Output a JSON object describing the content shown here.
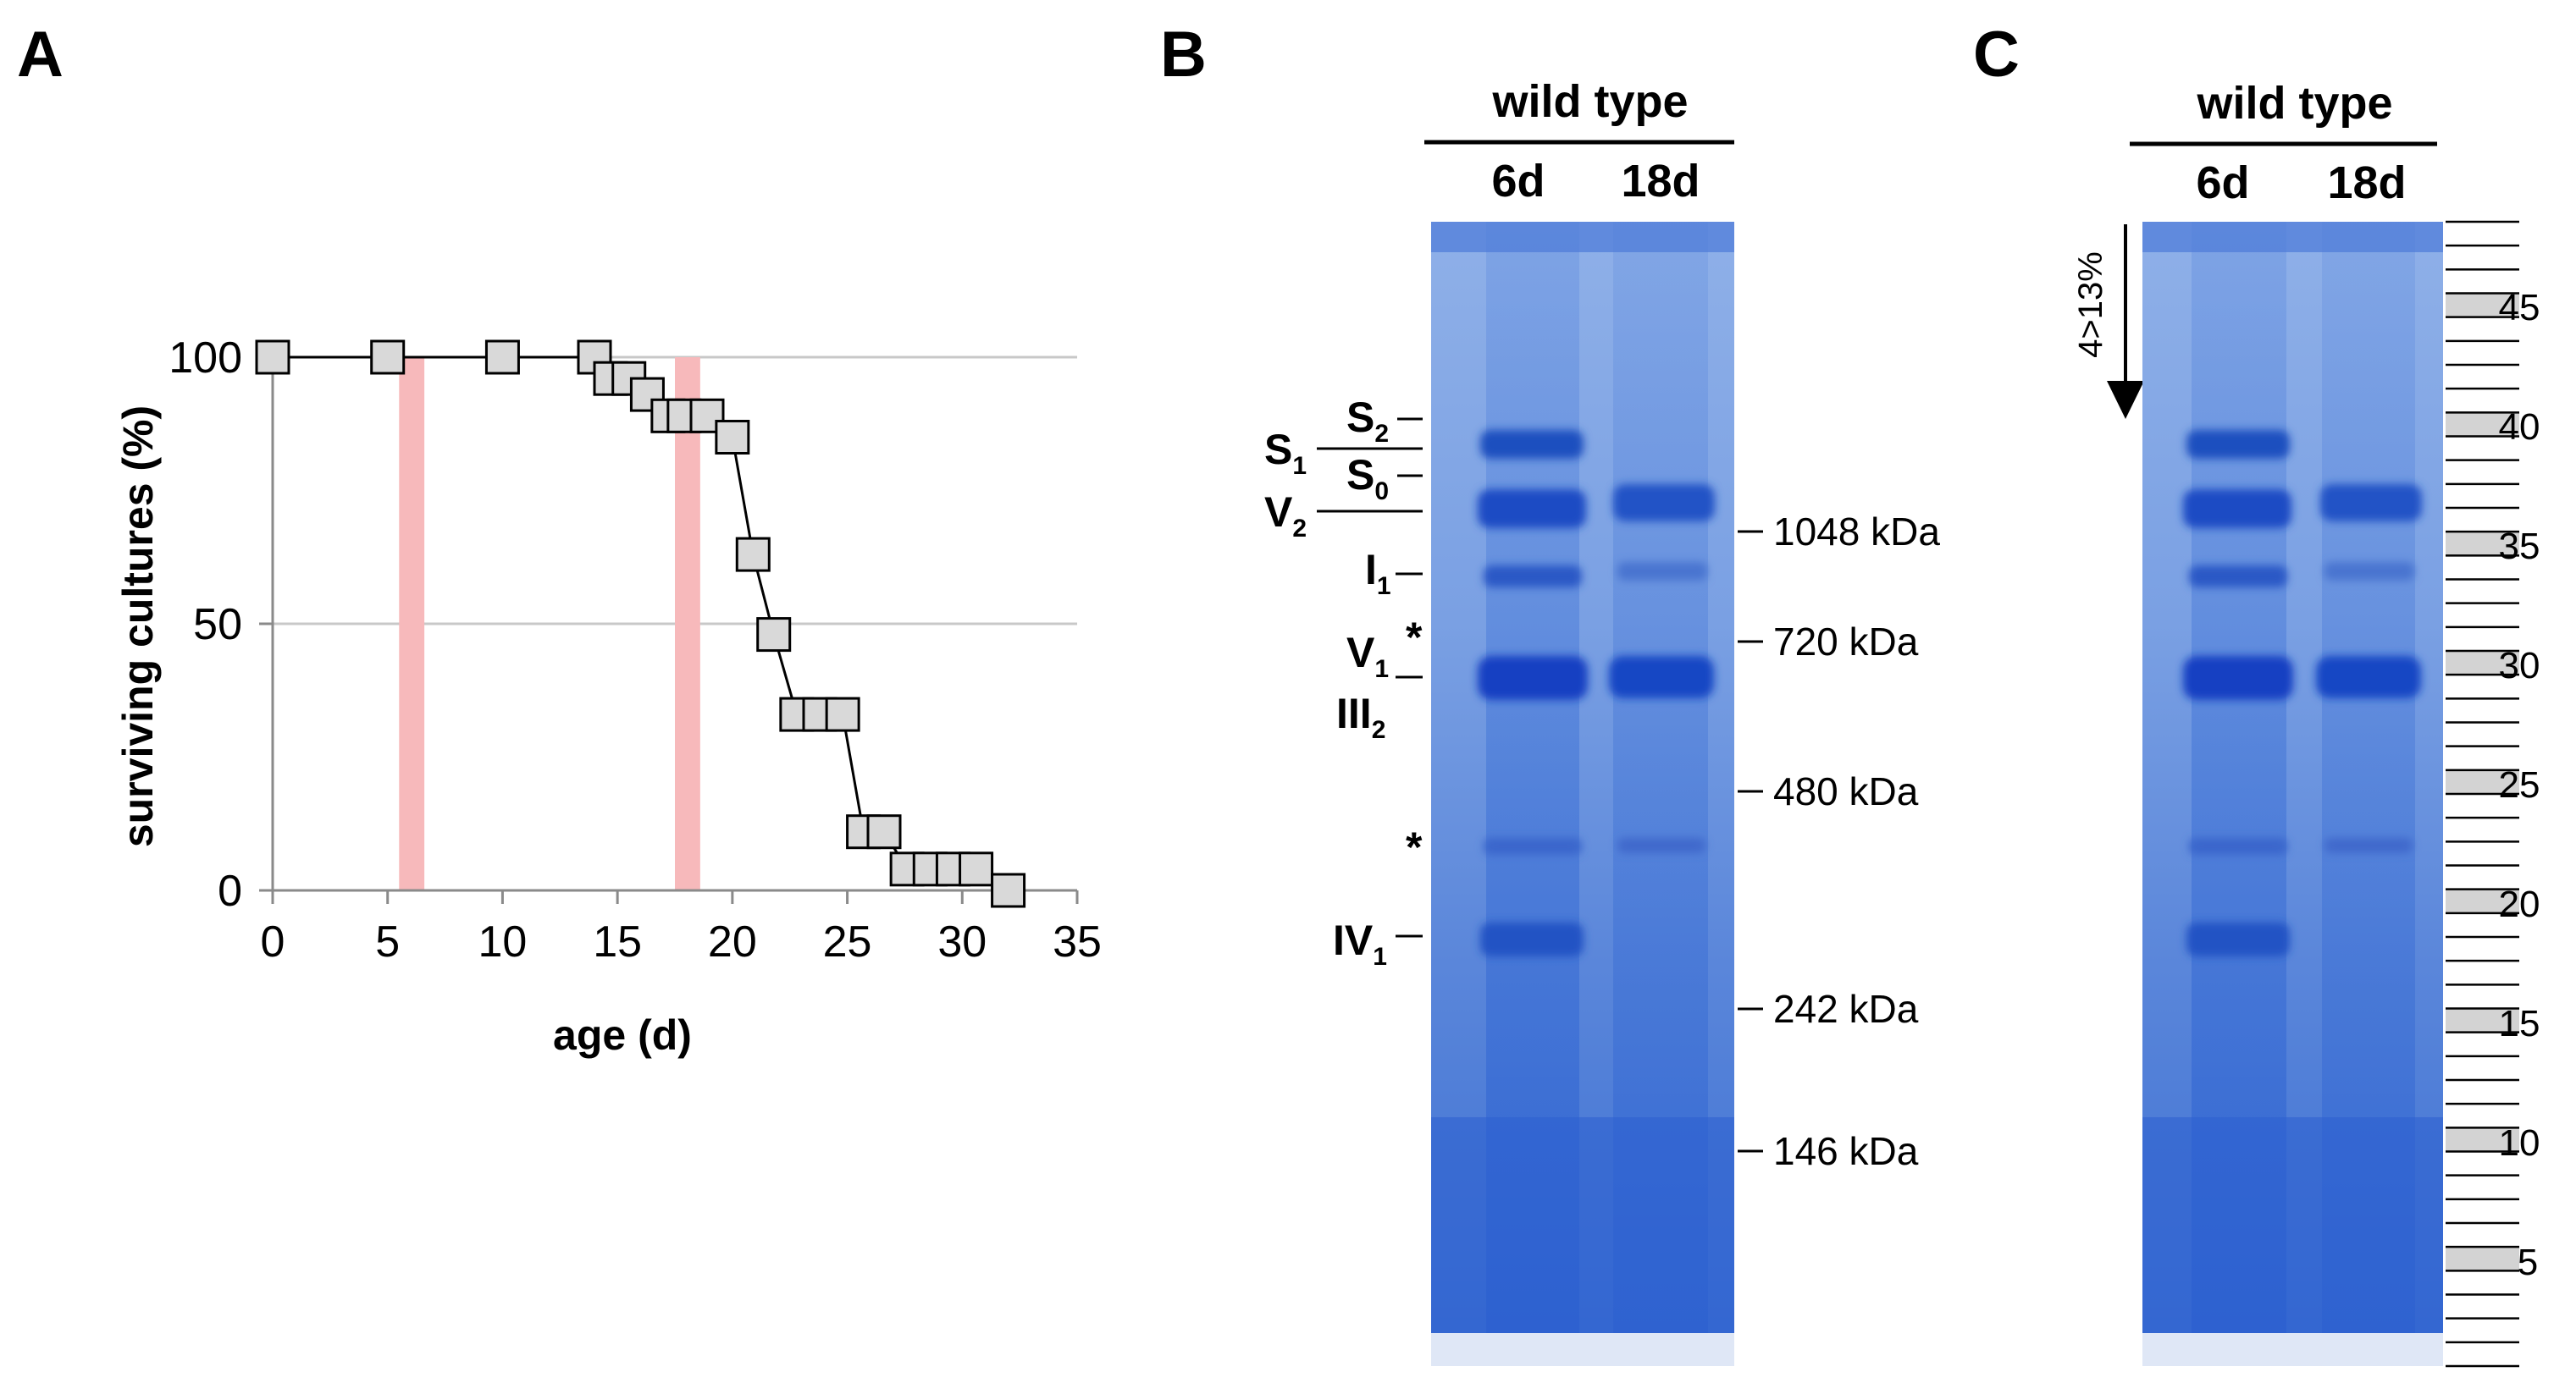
{
  "panels": {
    "a": "A",
    "b": "B",
    "c": "C"
  },
  "chart_data": {
    "type": "line",
    "xlabel": "age (d)",
    "ylabel": "surviving cultures (%)",
    "xlim": [
      0,
      35
    ],
    "ylim": [
      0,
      100
    ],
    "xticks": [
      0,
      5,
      10,
      15,
      20,
      25,
      30,
      35
    ],
    "yticks": [
      0,
      50,
      100
    ],
    "grid": "horizontal",
    "x": [
      0,
      5,
      10,
      14,
      14.7,
      15.5,
      16.3,
      17.2,
      17.9,
      18.9,
      20,
      20.9,
      21.8,
      22.8,
      23.8,
      24.8,
      25.7,
      26.6,
      27.6,
      28.6,
      29.6,
      30.6,
      32
    ],
    "y": [
      100,
      100,
      100,
      100,
      96,
      96,
      93,
      89,
      89,
      89,
      85,
      63,
      48,
      33,
      33,
      33,
      11,
      11,
      4,
      4,
      4,
      4,
      0
    ],
    "highlight_bands": [
      {
        "from": 5.5,
        "to": 6.6,
        "color": "#f7b9bb"
      },
      {
        "from": 17.5,
        "to": 18.6,
        "color": "#f7b9bb"
      }
    ],
    "marker_color": "#d9d9d9",
    "line_color": "#000000"
  },
  "gel_b": {
    "group_label": "wild type",
    "lanes": [
      "6d",
      "18d"
    ],
    "complexes": [
      {
        "main": "S",
        "sub": "2"
      },
      {
        "main": "S",
        "sub": "1"
      },
      {
        "main": "S",
        "sub": "0"
      },
      {
        "main": "V",
        "sub": "2"
      },
      {
        "main": "I",
        "sub": "1"
      },
      {
        "main": "V",
        "sub": "1"
      },
      {
        "main": "III",
        "sub": "2"
      },
      {
        "main": "IV",
        "sub": "1"
      }
    ],
    "asterisks": [
      "*",
      "*"
    ],
    "markers": [
      "1048 kDa",
      "720 kDa",
      "480 kDa",
      "242 kDa",
      "146 kDa"
    ],
    "stain_color": "#2a5fd0"
  },
  "gel_c": {
    "group_label": "wild type",
    "lanes": [
      "6d",
      "18d"
    ],
    "gradient_label": "4>13%",
    "fraction_numbers": [
      "45",
      "40",
      "35",
      "30",
      "25",
      "20",
      "15",
      "10",
      "5"
    ],
    "fraction_fill": "#d3d3d3"
  }
}
